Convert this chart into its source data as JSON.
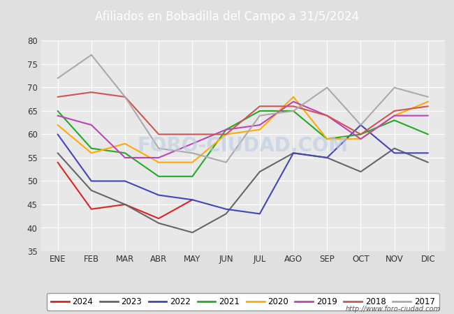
{
  "title": "Afiliados en Bobadilla del Campo a 31/5/2024",
  "title_bg_color": "#5588cc",
  "title_text_color": "white",
  "ylim": [
    35,
    80
  ],
  "yticks": [
    35,
    40,
    45,
    50,
    55,
    60,
    65,
    70,
    75,
    80
  ],
  "months": [
    "ENE",
    "FEB",
    "MAR",
    "ABR",
    "MAY",
    "JUN",
    "JUL",
    "AGO",
    "SEP",
    "OCT",
    "NOV",
    "DIC"
  ],
  "series": {
    "2024": {
      "color": "#dd2222",
      "data": [
        54,
        44,
        45,
        42,
        46,
        null,
        null,
        null,
        null,
        null,
        null,
        null
      ]
    },
    "2023": {
      "color": "#666666",
      "data": [
        56,
        48,
        45,
        41,
        39,
        43,
        52,
        56,
        55,
        52,
        57,
        54
      ]
    },
    "2022": {
      "color": "#4444bb",
      "data": [
        60,
        50,
        50,
        47,
        46,
        44,
        43,
        56,
        55,
        62,
        56,
        56
      ]
    },
    "2021": {
      "color": "#22aa22",
      "data": [
        65,
        57,
        56,
        51,
        51,
        61,
        65,
        65,
        59,
        60,
        63,
        60
      ]
    },
    "2020": {
      "color": "#ffaa00",
      "data": [
        62,
        56,
        58,
        54,
        54,
        60,
        61,
        68,
        59,
        59,
        64,
        67
      ]
    },
    "2019": {
      "color": "#bb44bb",
      "data": [
        64,
        62,
        55,
        55,
        58,
        61,
        62,
        67,
        64,
        59,
        64,
        64
      ]
    },
    "2018": {
      "color": "#cc5555",
      "data": [
        68,
        69,
        68,
        60,
        60,
        60,
        66,
        66,
        64,
        60,
        65,
        66
      ]
    },
    "2017": {
      "color": "#aaaaaa",
      "data": [
        72,
        77,
        68,
        57,
        56,
        54,
        64,
        65,
        70,
        62,
        70,
        68
      ]
    }
  },
  "background_color": "#e0e0e0",
  "plot_bg_color": "#e8e8e8",
  "grid_color": "#ffffff",
  "url_text": "http://www.foro-ciudad.com",
  "legend_order": [
    "2024",
    "2023",
    "2022",
    "2021",
    "2020",
    "2019",
    "2018",
    "2017"
  ]
}
